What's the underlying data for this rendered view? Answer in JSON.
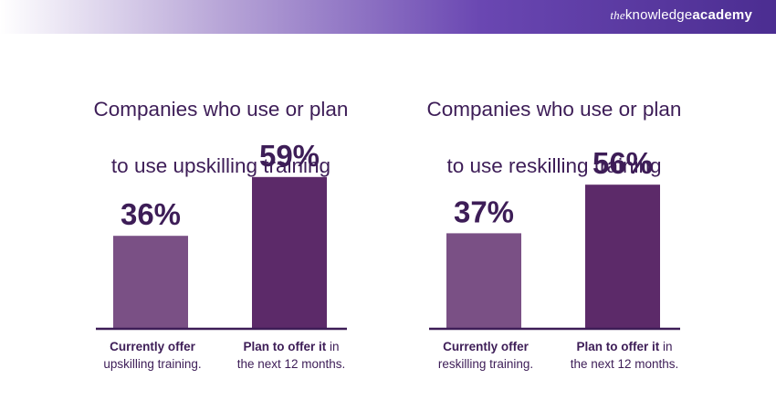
{
  "brand": {
    "prefix": "the",
    "name": "knowledge",
    "suffix": "academy"
  },
  "colors": {
    "bar_current": "#7a5085",
    "bar_plan": "#5c2a69",
    "text": "#3d1d57",
    "axis": "#3d1d57"
  },
  "chart_data": [
    {
      "type": "bar",
      "title": "Companies who use or plan to use upskilling training",
      "title_lines": [
        "Companies who use or plan",
        "to use upskilling training"
      ],
      "categories": [
        "Currently offer upskilling training.",
        "Plan to offer it in the next 12 months."
      ],
      "category_lines": [
        {
          "bold": "Currently offer",
          "rest": "",
          "line2": "upskilling training."
        },
        {
          "bold": "Plan to offer it",
          "rest": " in",
          "line2": "the next 12 months."
        }
      ],
      "values": [
        36,
        59
      ],
      "value_labels": [
        "36%",
        "59%"
      ],
      "ylim": [
        0,
        100
      ],
      "grid": false
    },
    {
      "type": "bar",
      "title": "Companies who use or plan to use reskilling training",
      "title_lines": [
        "Companies who use or plan",
        "to use reskilling training"
      ],
      "categories": [
        "Currently offer reskilling training.",
        "Plan to offer it in the next 12 months."
      ],
      "category_lines": [
        {
          "bold": "Currently offer",
          "rest": "",
          "line2": "reskilling training."
        },
        {
          "bold": "Plan to offer it",
          "rest": " in",
          "line2": "the next 12 months."
        }
      ],
      "values": [
        37,
        56
      ],
      "value_labels": [
        "37%",
        "56%"
      ],
      "ylim": [
        0,
        100
      ],
      "grid": false
    }
  ]
}
